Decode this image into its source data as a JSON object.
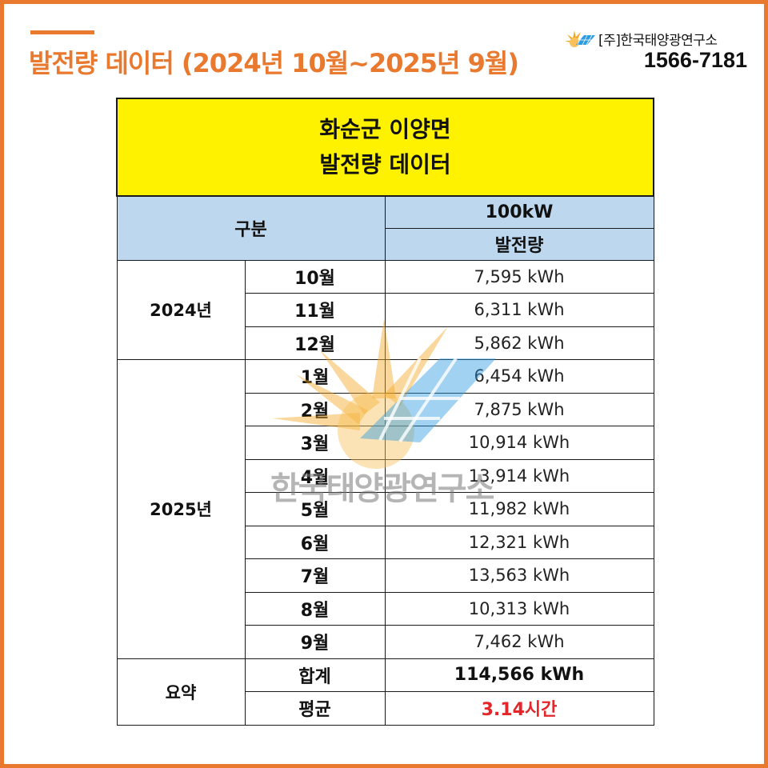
{
  "page": {
    "title": "발전량 데이터 (2024년 10월~2025년 9월)"
  },
  "brand": {
    "name": "[주]한국태양광연구소",
    "phone": "1566-7181",
    "logo_icon": "sun-solar-panel-icon"
  },
  "table": {
    "title_line1": "화순군 이양면",
    "title_line2": "발전량 데이터",
    "header_category": "구분",
    "header_capacity": "100kW",
    "header_generation": "발전량",
    "groups": [
      {
        "year": "2024년",
        "rows": [
          {
            "month": "10월",
            "value": "7,595 kWh"
          },
          {
            "month": "11월",
            "value": "6,311 kWh"
          },
          {
            "month": "12월",
            "value": "5,862 kWh"
          }
        ]
      },
      {
        "year": "2025년",
        "rows": [
          {
            "month": "1월",
            "value": "6,454 kWh"
          },
          {
            "month": "2월",
            "value": "7,875 kWh"
          },
          {
            "month": "3월",
            "value": "10,914 kWh"
          },
          {
            "month": "4월",
            "value": "13,914 kWh"
          },
          {
            "month": "5월",
            "value": "11,982 kWh"
          },
          {
            "month": "6월",
            "value": "12,321 kWh"
          },
          {
            "month": "7월",
            "value": "13,563 kWh"
          },
          {
            "month": "8월",
            "value": "10,313 kWh"
          },
          {
            "month": "9월",
            "value": "7,462 kWh"
          }
        ]
      }
    ],
    "summary": {
      "label": "요약",
      "total_label": "합계",
      "total_value": "114,566 kWh",
      "average_label": "평균",
      "average_value": "3.14시간"
    }
  },
  "watermark": {
    "text": "한국태양광연구소",
    "icon": "sun-solar-panel-watermark-icon"
  },
  "colors": {
    "accent": "#e8792e",
    "title_bg": "#fff200",
    "header_bg": "#bdd7ee",
    "average_text": "#e3262a"
  }
}
